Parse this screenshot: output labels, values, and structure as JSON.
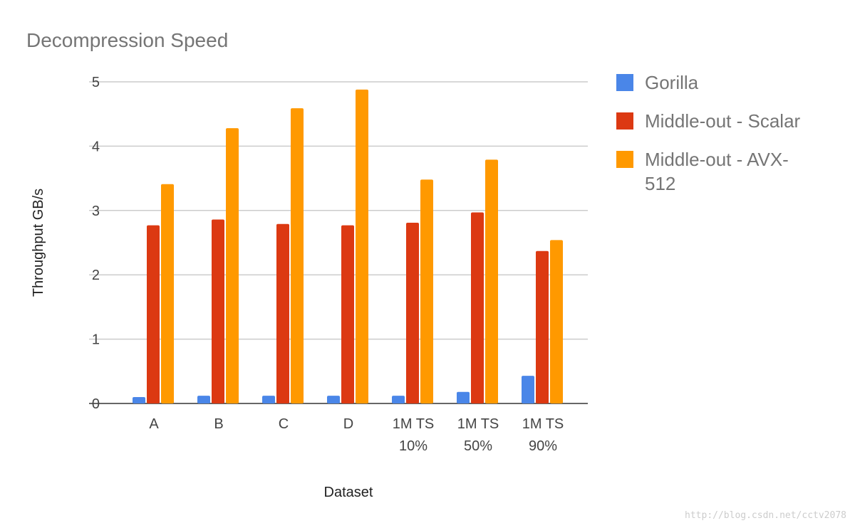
{
  "chart_data": {
    "type": "bar",
    "title": "Decompression Speed",
    "xlabel": "Dataset",
    "ylabel": "Throughput GB/s",
    "ylim": [
      0,
      5
    ],
    "yticks": [
      "0",
      "1",
      "2",
      "3",
      "4",
      "5"
    ],
    "grid": true,
    "legend_position": "right",
    "categories": [
      [
        "A"
      ],
      [
        "B"
      ],
      [
        "C"
      ],
      [
        "D"
      ],
      [
        "1M TS",
        "10%"
      ],
      [
        "1M TS",
        "50%"
      ],
      [
        "1M TS",
        "90%"
      ]
    ],
    "series": [
      {
        "name": "Gorilla",
        "color": "#4a86e8",
        "values": [
          0.1,
          0.12,
          0.12,
          0.12,
          0.12,
          0.18,
          0.43
        ]
      },
      {
        "name": "Middle-out - Scalar",
        "color": "#dc3912",
        "values": [
          2.77,
          2.86,
          2.79,
          2.77,
          2.81,
          2.97,
          2.37
        ]
      },
      {
        "name": "Middle-out - AVX-512",
        "legend_lines": [
          "Middle-out - AVX-",
          "512"
        ],
        "color": "#ff9900",
        "values": [
          3.41,
          4.28,
          4.59,
          4.88,
          3.48,
          3.79,
          2.54
        ]
      }
    ]
  },
  "watermark": "http://blog.csdn.net/cctv2078"
}
